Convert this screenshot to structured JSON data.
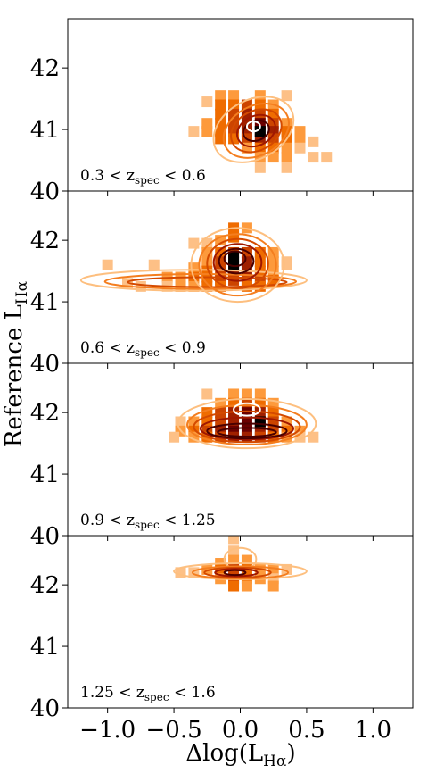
{
  "chart_data": {
    "type": "heatmap",
    "ylabel_text": "Reference L",
    "ylabel_sub": "Hα",
    "xlabel_text": "Δlog(L",
    "xlabel_sub": "Hα",
    "xlabel_close": ")",
    "xlim": [
      -1.3,
      1.3
    ],
    "ylim": [
      40,
      42.8
    ],
    "xticks": [
      -1.0,
      -0.5,
      0.0,
      0.5,
      1.0
    ],
    "xtick_labels": [
      "−1.0",
      "−0.5",
      "0.0",
      "0.5",
      "1.0"
    ],
    "yticks": [
      40,
      41,
      42
    ],
    "colors": {
      "levels": [
        "#fdc086",
        "#fd9a3c",
        "#ef6c00",
        "#cc4400",
        "#a02000",
        "#6b0000",
        "#000000"
      ],
      "contours": [
        "#fdbf7f",
        "#f47e1f",
        "#d44a00",
        "#a01800",
        "#4a0000",
        "#ffffff"
      ]
    },
    "panels": [
      {
        "label_pre": "0.3 < z",
        "label_sub": "spec",
        "label_post": " < 0.6",
        "cells": [
          [
            -0.25,
            41.45,
            1
          ],
          [
            -0.15,
            41.55,
            2
          ],
          [
            -0.05,
            41.55,
            2
          ],
          [
            0.15,
            41.55,
            2
          ],
          [
            0.35,
            41.55,
            1
          ],
          [
            -0.15,
            41.4,
            3
          ],
          [
            -0.05,
            41.4,
            3
          ],
          [
            0.05,
            41.4,
            4
          ],
          [
            0.15,
            41.4,
            3
          ],
          [
            0.25,
            41.4,
            2
          ],
          [
            -0.15,
            41.25,
            3
          ],
          [
            -0.05,
            41.25,
            4
          ],
          [
            0.05,
            41.25,
            5
          ],
          [
            0.15,
            41.25,
            4
          ],
          [
            0.25,
            41.25,
            3
          ],
          [
            -0.35,
            40.97,
            1
          ],
          [
            -0.25,
            41.1,
            2
          ],
          [
            -0.15,
            41.1,
            3
          ],
          [
            -0.05,
            41.1,
            4
          ],
          [
            0.05,
            41.1,
            5
          ],
          [
            0.15,
            41.1,
            6
          ],
          [
            0.25,
            41.1,
            4
          ],
          [
            0.35,
            41.1,
            2
          ],
          [
            -0.25,
            40.97,
            2
          ],
          [
            -0.15,
            40.97,
            3
          ],
          [
            -0.05,
            40.97,
            4
          ],
          [
            0.05,
            40.97,
            5
          ],
          [
            0.15,
            40.97,
            6
          ],
          [
            0.25,
            40.97,
            5
          ],
          [
            0.35,
            40.97,
            3
          ],
          [
            0.45,
            40.97,
            2
          ],
          [
            -0.15,
            40.85,
            3
          ],
          [
            -0.05,
            40.85,
            3
          ],
          [
            0.05,
            40.85,
            4
          ],
          [
            0.15,
            40.85,
            5
          ],
          [
            0.25,
            40.85,
            4
          ],
          [
            0.35,
            40.85,
            3
          ],
          [
            0.45,
            40.85,
            2
          ],
          [
            0.55,
            40.8,
            1
          ],
          [
            0.05,
            40.7,
            2
          ],
          [
            0.15,
            40.7,
            3
          ],
          [
            0.25,
            40.7,
            3
          ],
          [
            0.35,
            40.7,
            2
          ],
          [
            0.45,
            40.7,
            1
          ],
          [
            0.55,
            40.55,
            1
          ],
          [
            0.65,
            40.55,
            1
          ],
          [
            0.35,
            40.55,
            2
          ],
          [
            0.25,
            40.55,
            2
          ],
          [
            0.15,
            40.55,
            2
          ],
          [
            0.35,
            40.38,
            1
          ],
          [
            0.15,
            40.38,
            1
          ]
        ],
        "contours": [
          {
            "cx": 0.1,
            "cy": 41.0,
            "rx": 0.32,
            "ry": 0.48,
            "rot": -28,
            "c": 0
          },
          {
            "cx": 0.12,
            "cy": 40.98,
            "rx": 0.26,
            "ry": 0.4,
            "rot": -28,
            "c": 1
          },
          {
            "cx": 0.12,
            "cy": 40.98,
            "rx": 0.2,
            "ry": 0.32,
            "rot": -28,
            "c": 2
          },
          {
            "cx": 0.12,
            "cy": 40.98,
            "rx": 0.15,
            "ry": 0.24,
            "rot": -25,
            "c": 3
          },
          {
            "cx": 0.12,
            "cy": 40.98,
            "rx": 0.1,
            "ry": 0.16,
            "rot": -20,
            "c": 4
          },
          {
            "cx": 0.1,
            "cy": 41.05,
            "rx": 0.05,
            "ry": 0.08,
            "rot": 0,
            "c": 5
          }
        ],
        "core": [
          [
            0.15,
            40.97
          ]
        ]
      },
      {
        "label_pre": "0.6 < z",
        "label_sub": "spec",
        "label_post": " < 0.9",
        "cells": [
          [
            -0.35,
            41.95,
            1
          ],
          [
            -0.25,
            41.95,
            1
          ],
          [
            -0.15,
            42.0,
            2
          ],
          [
            -0.05,
            42.2,
            3
          ],
          [
            0.05,
            42.2,
            2
          ],
          [
            -0.05,
            42.05,
            3
          ],
          [
            -0.25,
            41.8,
            2
          ],
          [
            -0.15,
            41.8,
            3
          ],
          [
            -0.05,
            41.8,
            4
          ],
          [
            0.05,
            41.8,
            4
          ],
          [
            0.15,
            41.8,
            3
          ],
          [
            0.25,
            41.8,
            2
          ],
          [
            -0.25,
            41.65,
            2
          ],
          [
            -0.15,
            41.65,
            4
          ],
          [
            -0.05,
            41.65,
            6
          ],
          [
            0.05,
            41.65,
            5
          ],
          [
            0.15,
            41.65,
            3
          ],
          [
            0.25,
            41.65,
            2
          ],
          [
            0.35,
            41.65,
            1
          ],
          [
            -1.0,
            41.6,
            1
          ],
          [
            -0.65,
            41.6,
            1
          ],
          [
            -0.35,
            41.55,
            2
          ],
          [
            -0.25,
            41.5,
            3
          ],
          [
            -0.15,
            41.5,
            4
          ],
          [
            -0.05,
            41.5,
            5
          ],
          [
            0.05,
            41.5,
            5
          ],
          [
            0.15,
            41.5,
            3
          ],
          [
            0.25,
            41.5,
            2
          ],
          [
            -0.55,
            41.4,
            2
          ],
          [
            -0.45,
            41.4,
            2
          ],
          [
            -0.35,
            41.4,
            3
          ],
          [
            -0.25,
            41.4,
            3
          ],
          [
            -0.15,
            41.35,
            4
          ],
          [
            -0.05,
            41.35,
            4
          ],
          [
            0.05,
            41.35,
            4
          ],
          [
            0.15,
            41.35,
            4
          ],
          [
            0.25,
            41.35,
            3
          ],
          [
            -0.85,
            41.3,
            1
          ],
          [
            -0.75,
            41.25,
            1
          ],
          [
            -0.55,
            41.25,
            1
          ],
          [
            -0.45,
            41.25,
            2
          ],
          [
            -0.35,
            41.25,
            2
          ],
          [
            -0.25,
            41.25,
            3
          ],
          [
            -0.15,
            41.25,
            3
          ],
          [
            0.05,
            41.25,
            3
          ],
          [
            0.15,
            41.25,
            3
          ],
          [
            0.35,
            41.6,
            1
          ]
        ],
        "contours": [
          {
            "cx": -0.35,
            "cy": 41.35,
            "rx": 0.85,
            "ry": 0.17,
            "rot": 0,
            "c": 0
          },
          {
            "cx": -0.3,
            "cy": 41.33,
            "rx": 0.72,
            "ry": 0.12,
            "rot": 0,
            "c": 1
          },
          {
            "cx": -0.25,
            "cy": 41.32,
            "rx": 0.6,
            "ry": 0.08,
            "rot": 0,
            "c": 2
          },
          {
            "cx": -0.02,
            "cy": 41.6,
            "rx": 0.35,
            "ry": 0.6,
            "rot": 0,
            "c": 0
          },
          {
            "cx": -0.02,
            "cy": 41.6,
            "rx": 0.29,
            "ry": 0.5,
            "rot": 0,
            "c": 1
          },
          {
            "cx": -0.02,
            "cy": 41.62,
            "rx": 0.23,
            "ry": 0.4,
            "rot": 0,
            "c": 2
          },
          {
            "cx": -0.02,
            "cy": 41.64,
            "rx": 0.18,
            "ry": 0.3,
            "rot": 0,
            "c": 3
          },
          {
            "cx": -0.03,
            "cy": 41.66,
            "rx": 0.13,
            "ry": 0.2,
            "rot": 0,
            "c": 4
          },
          {
            "cx": -0.04,
            "cy": 41.7,
            "rx": 0.08,
            "ry": 0.12,
            "rot": 0,
            "c": 4
          }
        ],
        "core": [
          [
            -0.05,
            41.72
          ],
          [
            -0.05,
            41.58
          ]
        ]
      },
      {
        "label_pre": "0.9 < z",
        "label_sub": "spec",
        "label_post": " < 1.25",
        "cells": [
          [
            -0.25,
            42.3,
            1
          ],
          [
            -0.05,
            42.3,
            2
          ],
          [
            0.05,
            42.3,
            2
          ],
          [
            0.15,
            42.3,
            2
          ],
          [
            -0.15,
            42.15,
            2
          ],
          [
            -0.05,
            42.15,
            3
          ],
          [
            0.05,
            42.15,
            4
          ],
          [
            0.15,
            42.15,
            3
          ],
          [
            0.25,
            42.15,
            2
          ],
          [
            -0.25,
            42.0,
            3
          ],
          [
            -0.15,
            42.0,
            4
          ],
          [
            -0.05,
            42.0,
            5
          ],
          [
            0.05,
            42.0,
            6
          ],
          [
            0.15,
            42.0,
            5
          ],
          [
            0.25,
            42.0,
            3
          ],
          [
            -0.45,
            41.85,
            1
          ],
          [
            -0.35,
            41.85,
            2
          ],
          [
            -0.25,
            41.85,
            3
          ],
          [
            -0.15,
            41.85,
            4
          ],
          [
            -0.05,
            41.85,
            5
          ],
          [
            0.05,
            41.85,
            6
          ],
          [
            0.15,
            41.85,
            6
          ],
          [
            0.25,
            41.85,
            4
          ],
          [
            0.35,
            41.85,
            2
          ],
          [
            -0.45,
            41.7,
            2
          ],
          [
            -0.35,
            41.7,
            3
          ],
          [
            -0.25,
            41.7,
            4
          ],
          [
            -0.15,
            41.7,
            5
          ],
          [
            -0.05,
            41.7,
            6
          ],
          [
            0.05,
            41.7,
            6
          ],
          [
            0.15,
            41.7,
            5
          ],
          [
            0.25,
            41.7,
            4
          ],
          [
            0.35,
            41.7,
            3
          ],
          [
            0.45,
            41.7,
            2
          ],
          [
            -0.5,
            41.6,
            1
          ],
          [
            -0.35,
            41.6,
            2
          ],
          [
            -0.25,
            41.6,
            3
          ],
          [
            -0.15,
            41.6,
            4
          ],
          [
            -0.05,
            41.6,
            5
          ],
          [
            0.05,
            41.6,
            5
          ],
          [
            0.15,
            41.6,
            4
          ],
          [
            0.25,
            41.6,
            3
          ],
          [
            0.35,
            41.6,
            2
          ],
          [
            0.45,
            41.6,
            1
          ],
          [
            0.55,
            41.6,
            1
          ]
        ],
        "contours": [
          {
            "cx": 0.05,
            "cy": 41.82,
            "rx": 0.52,
            "ry": 0.4,
            "rot": 0,
            "c": 0
          },
          {
            "cx": 0.05,
            "cy": 41.8,
            "rx": 0.45,
            "ry": 0.32,
            "rot": 0,
            "c": 1
          },
          {
            "cx": 0.05,
            "cy": 41.77,
            "rx": 0.4,
            "ry": 0.25,
            "rot": 0,
            "c": 2
          },
          {
            "cx": 0.05,
            "cy": 41.74,
            "rx": 0.35,
            "ry": 0.18,
            "rot": 0,
            "c": 3
          },
          {
            "cx": 0.05,
            "cy": 41.7,
            "rx": 0.3,
            "ry": 0.12,
            "rot": 0,
            "c": 4
          },
          {
            "cx": 0.05,
            "cy": 41.68,
            "rx": 0.22,
            "ry": 0.07,
            "rot": 0,
            "c": 4
          },
          {
            "cx": 0.05,
            "cy": 42.05,
            "rx": 0.1,
            "ry": 0.1,
            "rot": 0,
            "c": 5
          }
        ],
        "core": [
          [
            0.15,
            41.85
          ]
        ]
      },
      {
        "label_pre": "1.25 < z",
        "label_sub": "spec",
        "label_post": " < 1.6",
        "cells": [
          [
            -0.05,
            42.75,
            1
          ],
          [
            -0.05,
            42.55,
            1
          ],
          [
            -0.05,
            42.4,
            2
          ],
          [
            0.05,
            42.4,
            2
          ],
          [
            -0.15,
            42.35,
            2
          ],
          [
            -0.45,
            42.2,
            1
          ],
          [
            -0.35,
            42.2,
            1
          ],
          [
            -0.25,
            42.25,
            2
          ],
          [
            -0.15,
            42.25,
            3
          ],
          [
            -0.05,
            42.25,
            4
          ],
          [
            0.05,
            42.25,
            3
          ],
          [
            0.15,
            42.25,
            2
          ],
          [
            0.25,
            42.25,
            2
          ],
          [
            0.35,
            42.25,
            1
          ],
          [
            -0.15,
            42.1,
            2
          ],
          [
            -0.05,
            42.1,
            4
          ],
          [
            0.05,
            42.1,
            3
          ],
          [
            0.15,
            42.1,
            2
          ],
          [
            0.25,
            42.1,
            1
          ],
          [
            -0.05,
            41.98,
            3
          ],
          [
            0.05,
            41.98,
            2
          ],
          [
            0.25,
            41.98,
            2
          ]
        ],
        "contours": [
          {
            "cx": 0.0,
            "cy": 42.22,
            "rx": 0.5,
            "ry": 0.13,
            "rot": 0,
            "c": 0
          },
          {
            "cx": 0.0,
            "cy": 42.42,
            "rx": 0.12,
            "ry": 0.18,
            "rot": 0,
            "c": 0
          },
          {
            "cx": 0.0,
            "cy": 42.2,
            "rx": 0.36,
            "ry": 0.1,
            "rot": 0,
            "c": 1
          },
          {
            "cx": -0.02,
            "cy": 42.2,
            "rx": 0.25,
            "ry": 0.08,
            "rot": 0,
            "c": 2
          },
          {
            "cx": -0.03,
            "cy": 42.2,
            "rx": 0.16,
            "ry": 0.06,
            "rot": 0,
            "c": 3
          },
          {
            "cx": -0.04,
            "cy": 42.2,
            "rx": 0.08,
            "ry": 0.04,
            "rot": 0,
            "c": 4
          }
        ],
        "core": []
      }
    ]
  }
}
